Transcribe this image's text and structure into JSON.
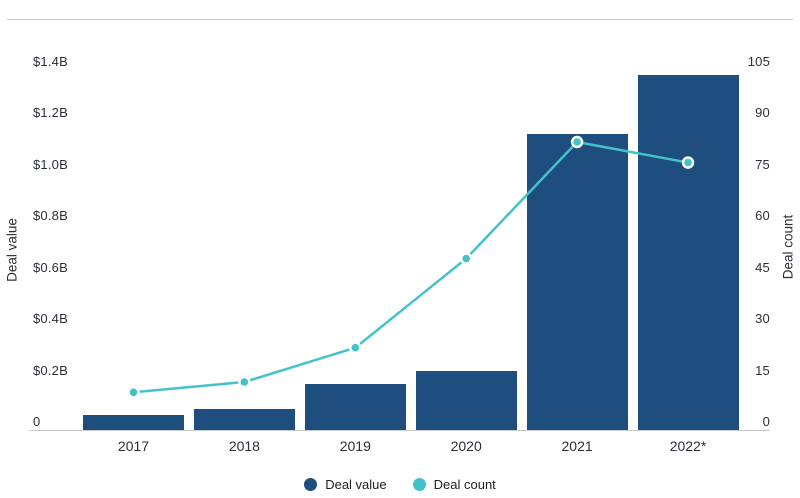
{
  "chart_data": {
    "type": "combo-bar-line",
    "title": "",
    "categories": [
      "2017",
      "2018",
      "2019",
      "2020",
      "2021",
      "2022*"
    ],
    "series": [
      {
        "name": "Deal value",
        "type": "bar",
        "axis": "left",
        "unit": "USD billions",
        "values": [
          0.06,
          0.08,
          0.18,
          0.23,
          1.15,
          1.38
        ],
        "color": "#1e4e7d"
      },
      {
        "name": "Deal count",
        "type": "line",
        "axis": "right",
        "values": [
          11,
          14,
          24,
          50,
          84,
          78
        ],
        "color": "#44c2cb",
        "marker": "circle-white-ring"
      }
    ],
    "left_axis": {
      "label": "Deal value",
      "min": 0,
      "max": 1.4,
      "ticks": [
        {
          "label": "$1.4B",
          "value": 1.4
        },
        {
          "label": "$1.2B",
          "value": 1.2
        },
        {
          "label": "$1.0B",
          "value": 1.0
        },
        {
          "label": "$0.8B",
          "value": 0.8
        },
        {
          "label": "$0.6B",
          "value": 0.6
        },
        {
          "label": "$0.4B",
          "value": 0.4
        },
        {
          "label": "$0.2B",
          "value": 0.2
        },
        {
          "label": "0",
          "value": 0
        }
      ]
    },
    "right_axis": {
      "label": "Deal count",
      "min": 0,
      "max": 105,
      "ticks": [
        {
          "label": "105",
          "value": 105
        },
        {
          "label": "90",
          "value": 90
        },
        {
          "label": "75",
          "value": 75
        },
        {
          "label": "60",
          "value": 60
        },
        {
          "label": "45",
          "value": 45
        },
        {
          "label": "30",
          "value": 30
        },
        {
          "label": "15",
          "value": 15
        },
        {
          "label": "0",
          "value": 0
        }
      ]
    },
    "legend": [
      {
        "label": "Deal value",
        "color": "#1e4e7d"
      },
      {
        "label": "Deal count",
        "color": "#44c2cb"
      }
    ],
    "grid": "none",
    "legend_position": "bottom-center",
    "background": "#ffffff",
    "divider_color": "#cbcbcb"
  }
}
